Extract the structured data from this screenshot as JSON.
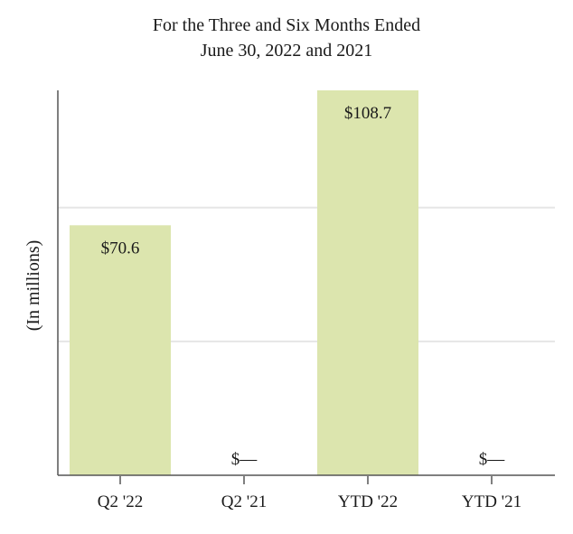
{
  "chart_data": {
    "type": "bar",
    "title": "For the Three and Six Months Ended",
    "subtitle": "June 30, 2022 and 2021",
    "ylabel": "(In millions)",
    "xlabel": "",
    "categories": [
      "Q2 '22",
      "Q2 '21",
      "YTD '22",
      "YTD '21"
    ],
    "values": [
      70.6,
      0,
      108.7,
      0
    ],
    "data_labels": [
      "$70.6",
      "$—",
      "$108.7",
      "$—"
    ],
    "ylim": [
      0,
      108.7
    ],
    "gridlines": [
      37.8,
      75.6
    ],
    "grid": true,
    "legend": "none",
    "bar_color": "#dce5ae",
    "grid_color": "#e6e6e6",
    "axis_color": "#555555"
  }
}
